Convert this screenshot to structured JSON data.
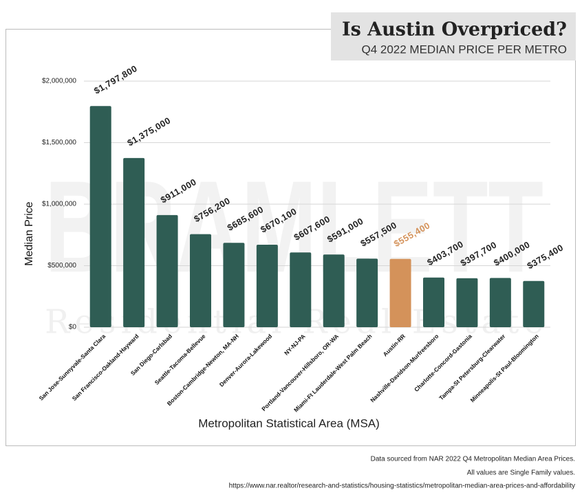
{
  "chart_data": {
    "type": "bar",
    "title": "Is Austin Overpriced?",
    "subtitle": "Q4 2022 MEDIAN PRICE PER METRO",
    "xlabel": "Metropolitan Statistical Area (MSA)",
    "ylabel": "Median Price",
    "watermark": [
      "BRAMLETT",
      "Residential Real Estate"
    ],
    "categories": [
      "San Jose-Sunnyvale-Santa Clara",
      "San Francisco-Oakland-Hayward",
      "San Diego-Carlsbad",
      "Seattle-Tacoma-Bellevue",
      "Boston-Cambridge-Newton, MA-NH",
      "Denver-Aurora-Lakewood",
      "NY-NJ-PA",
      "Portland-Vancouver-Hillsboro, OR-WA",
      "Miami-Ft Lauderdale-West Palm Beach",
      "Austin-RR",
      "Nashville-Davidson-Murfreesboro",
      "Charlotte-Concord-Gastonia",
      "Tampa-St Petersburg-Clearwater",
      "Minneapolis-St Paul-Bloomington"
    ],
    "values": [
      1797800,
      1375000,
      911000,
      756200,
      685600,
      670100,
      607600,
      591000,
      557500,
      555400,
      403700,
      397700,
      400000,
      375400
    ],
    "value_labels": [
      "$1,797,800",
      "$1,375,000",
      "$911,000",
      "$756,200",
      "$685,600",
      "$670,100",
      "$607,600",
      "$591,000",
      "$557,500",
      "$555,400",
      "$403,700",
      "$397,700",
      "$400,000",
      "$375,400"
    ],
    "color": "#2f5d54",
    "colors": [
      "#2f5d54",
      "#2f5d54",
      "#2f5d54",
      "#2f5d54",
      "#2f5d54",
      "#2f5d54",
      "#2f5d54",
      "#2f5d54",
      "#2f5d54",
      "#d4925a",
      "#2f5d54",
      "#2f5d54",
      "#2f5d54",
      "#2f5d54"
    ],
    "ylim": [
      0,
      2000000
    ],
    "yticks": [
      {
        "value": 0,
        "label": "$0"
      },
      {
        "value": 500000,
        "label": "$500,000"
      },
      {
        "value": 1000000,
        "label": "$1,000,000"
      },
      {
        "value": 1500000,
        "label": "$1,500,000"
      },
      {
        "value": 2000000,
        "label": "$2,000,000"
      }
    ],
    "grid": true,
    "notes": [
      "Data sourced from NAR 2022 Q4 Metropolitan Median Area Prices.",
      "All values are Single Family values.",
      "https://www.nar.realtor/research-and-statistics/housing-statistics/metropolitan-median-area-prices-and-affordability"
    ]
  }
}
